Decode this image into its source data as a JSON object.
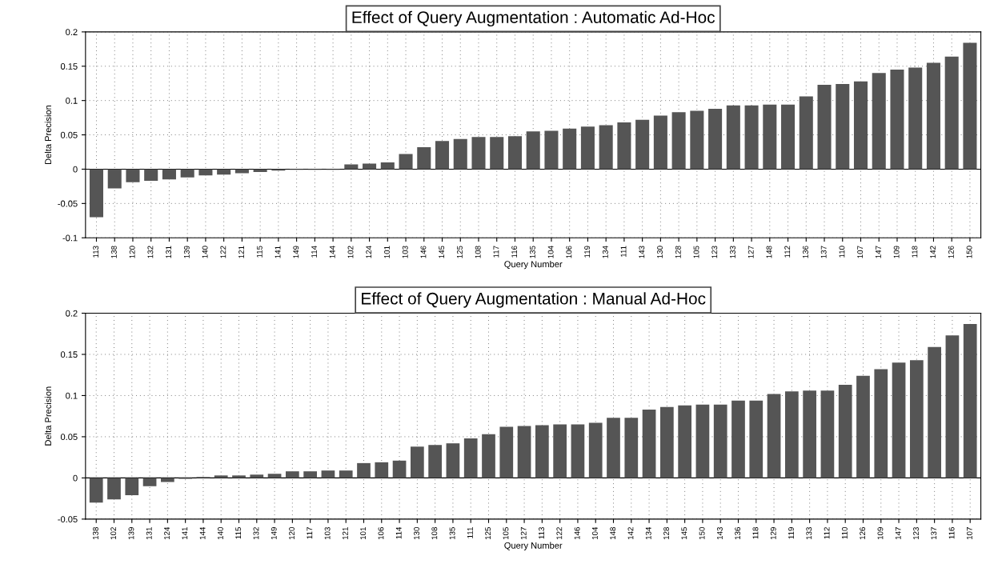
{
  "chart_data": [
    {
      "type": "bar",
      "title": "Effect of Query Augmentation : Automatic Ad-Hoc",
      "xlabel": "Query Number",
      "ylabel": "Delta Precision",
      "color": "#555555",
      "grid": true,
      "ylim": [
        -0.1,
        0.2
      ],
      "yticks": [
        -0.1,
        -0.05,
        0,
        0.05,
        0.1,
        0.15,
        0.2
      ],
      "categories": [
        "113",
        "138",
        "120",
        "132",
        "131",
        "139",
        "140",
        "122",
        "121",
        "115",
        "141",
        "149",
        "114",
        "144",
        "102",
        "124",
        "101",
        "103",
        "146",
        "145",
        "125",
        "108",
        "117",
        "116",
        "135",
        "104",
        "106",
        "119",
        "134",
        "111",
        "143",
        "130",
        "128",
        "105",
        "123",
        "133",
        "127",
        "148",
        "112",
        "136",
        "137",
        "110",
        "107",
        "147",
        "109",
        "118",
        "142",
        "126",
        "150"
      ],
      "values": [
        -0.07,
        -0.028,
        -0.019,
        -0.017,
        -0.015,
        -0.012,
        -0.009,
        -0.008,
        -0.006,
        -0.004,
        -0.002,
        -0.001,
        -0.001,
        -0.001,
        0.007,
        0.008,
        0.01,
        0.022,
        0.032,
        0.041,
        0.044,
        0.047,
        0.047,
        0.048,
        0.055,
        0.056,
        0.059,
        0.062,
        0.064,
        0.068,
        0.072,
        0.078,
        0.083,
        0.085,
        0.088,
        0.093,
        0.093,
        0.094,
        0.094,
        0.106,
        0.123,
        0.124,
        0.128,
        0.14,
        0.145,
        0.148,
        0.155,
        0.164,
        0.184
      ]
    },
    {
      "type": "bar",
      "title": "Effect of Query Augmentation : Manual Ad-Hoc",
      "xlabel": "Query Number",
      "ylabel": "Delta Precision",
      "color": "#555555",
      "grid": true,
      "ylim": [
        -0.05,
        0.2
      ],
      "yticks": [
        -0.05,
        0,
        0.05,
        0.1,
        0.15,
        0.2
      ],
      "categories": [
        "138",
        "102",
        "139",
        "131",
        "124",
        "141",
        "144",
        "140",
        "115",
        "132",
        "149",
        "120",
        "117",
        "103",
        "121",
        "101",
        "106",
        "114",
        "130",
        "108",
        "135",
        "111",
        "125",
        "105",
        "127",
        "113",
        "122",
        "146",
        "104",
        "148",
        "142",
        "134",
        "128",
        "145",
        "150",
        "143",
        "136",
        "118",
        "129",
        "119",
        "133",
        "112",
        "110",
        "126",
        "109",
        "147",
        "123",
        "137",
        "116",
        "107"
      ],
      "values": [
        -0.03,
        -0.026,
        -0.021,
        -0.01,
        -0.005,
        -0.001,
        0.001,
        0.003,
        0.003,
        0.004,
        0.005,
        0.008,
        0.008,
        0.009,
        0.009,
        0.018,
        0.019,
        0.021,
        0.038,
        0.04,
        0.042,
        0.048,
        0.053,
        0.062,
        0.063,
        0.064,
        0.065,
        0.065,
        0.067,
        0.073,
        0.073,
        0.083,
        0.086,
        0.088,
        0.089,
        0.089,
        0.094,
        0.094,
        0.102,
        0.105,
        0.106,
        0.106,
        0.113,
        0.124,
        0.132,
        0.14,
        0.143,
        0.159,
        0.173,
        0.187
      ]
    }
  ]
}
